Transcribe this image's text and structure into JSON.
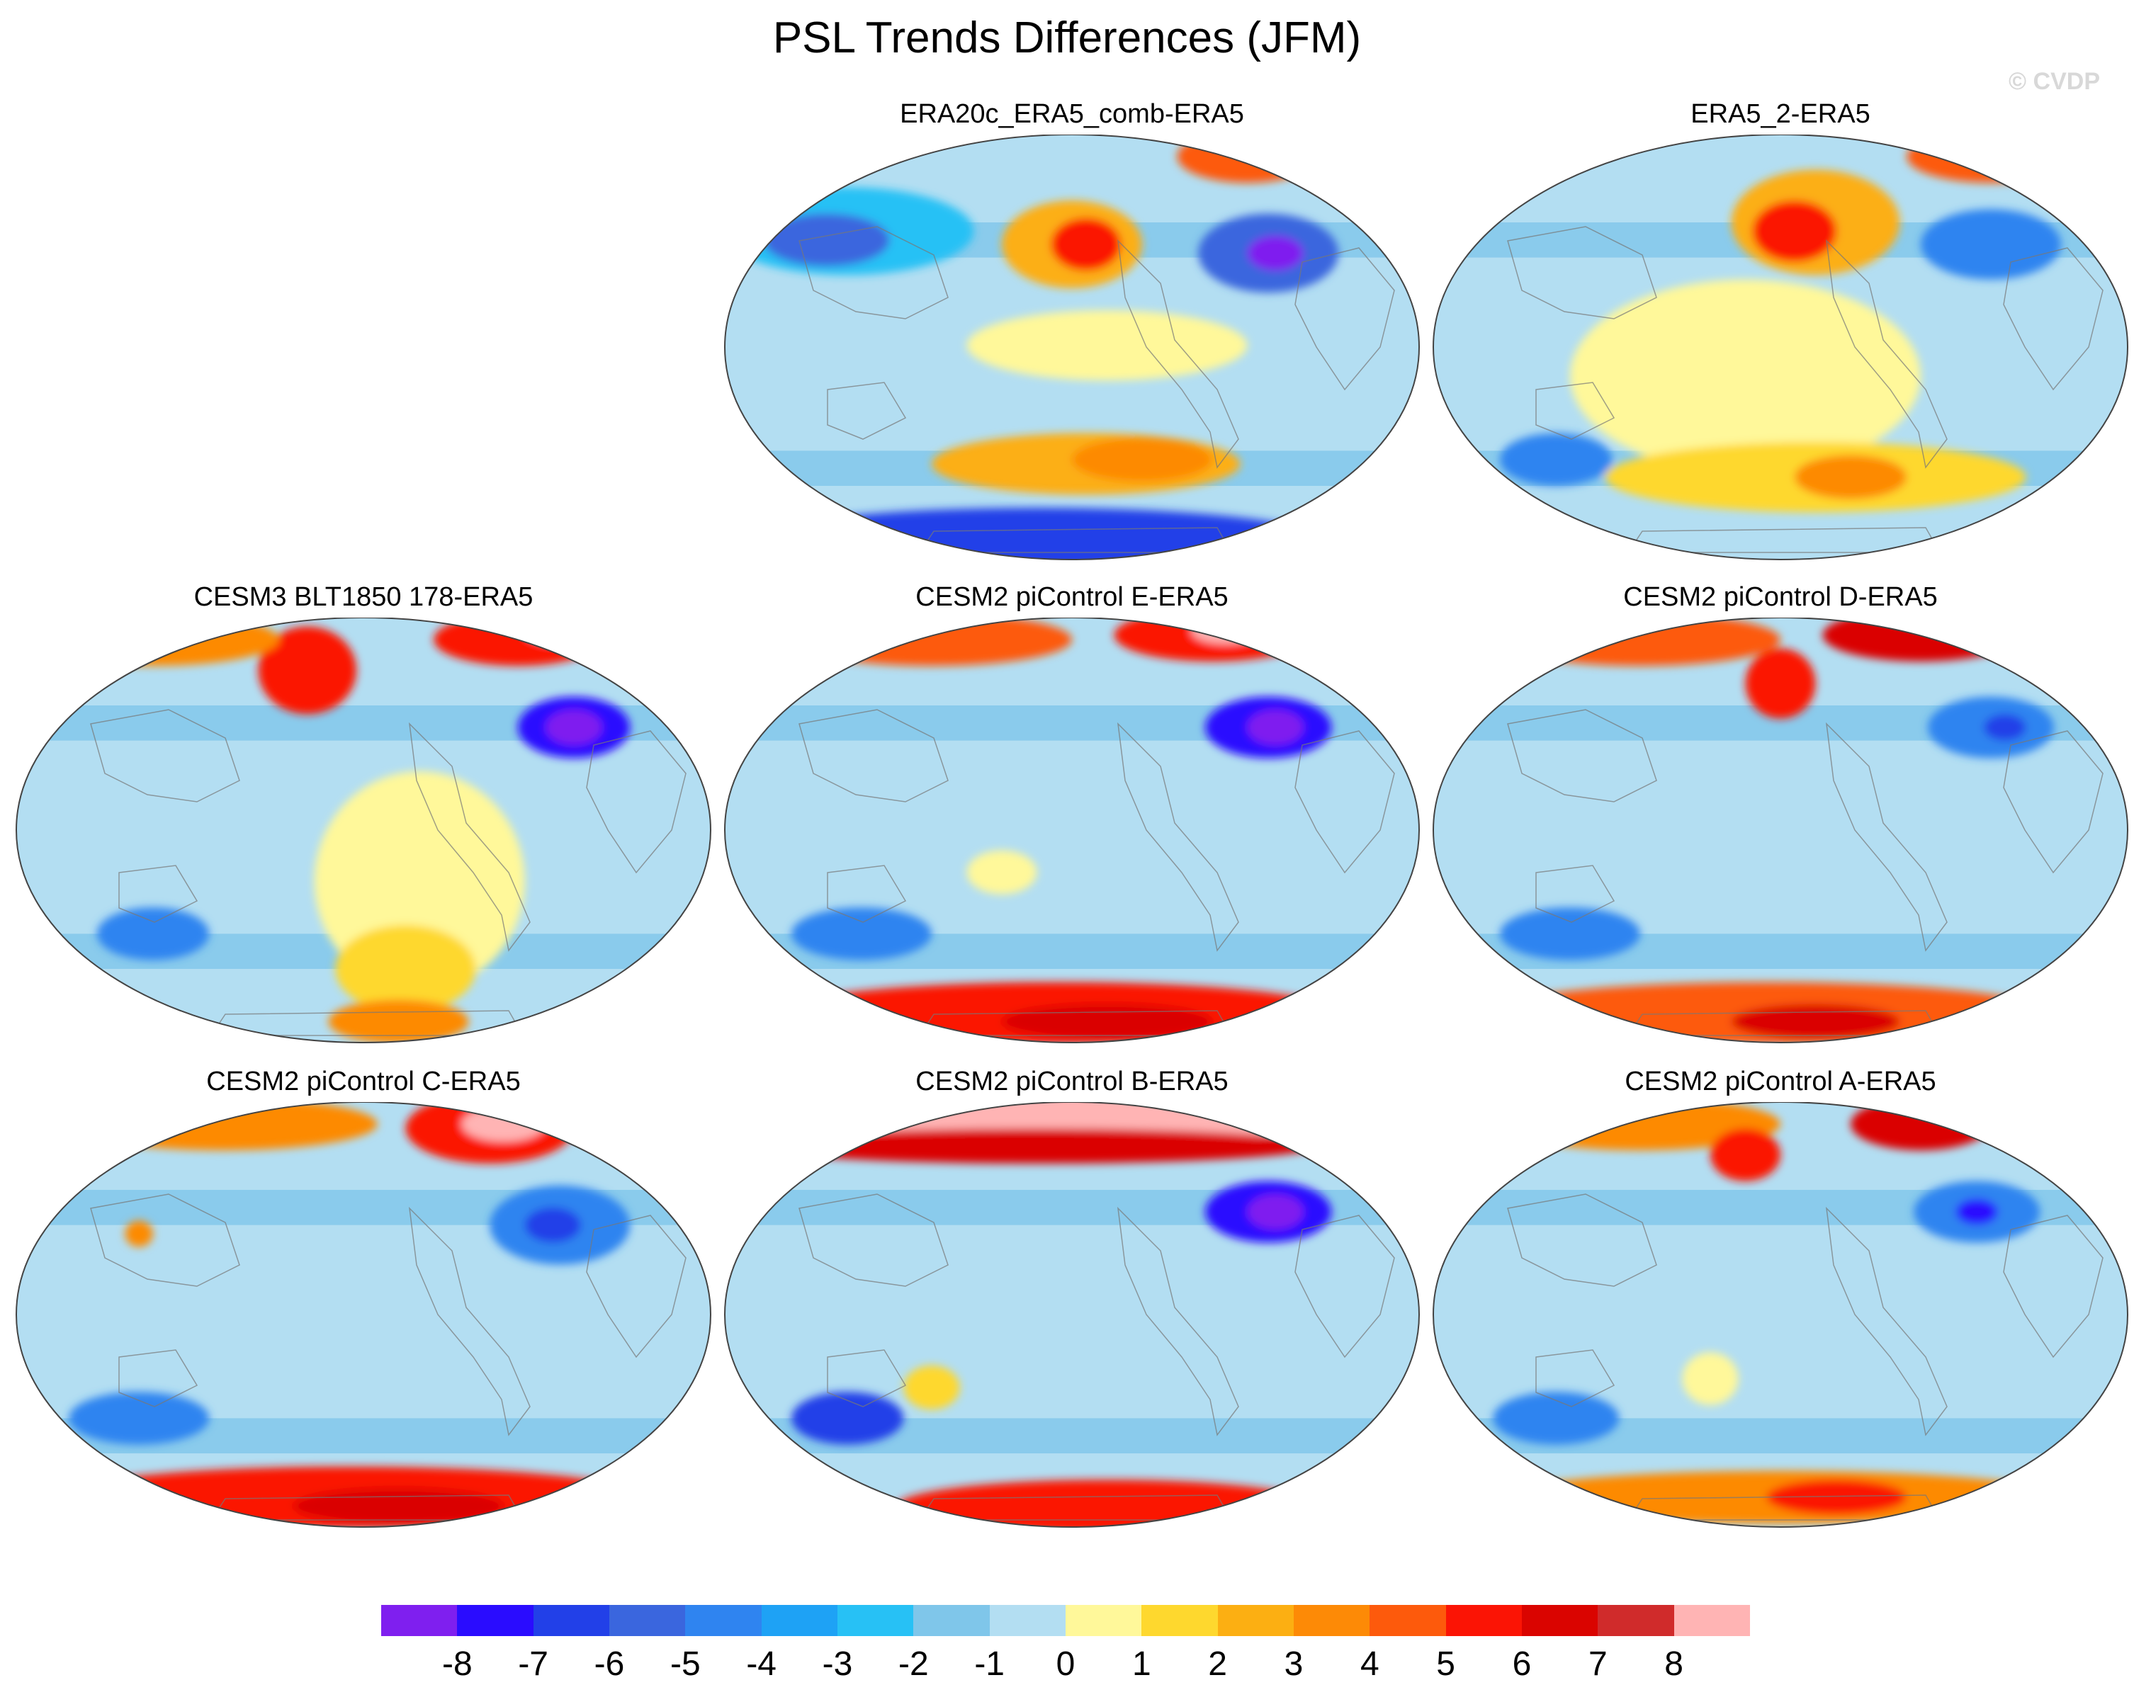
{
  "title": "PSL Trends Differences (JFM)",
  "copyright": "© CVDP",
  "panels": [
    {
      "id": "p1",
      "label": "ERA20c_ERA5_comb-ERA5",
      "row": 0,
      "col": 1
    },
    {
      "id": "p2",
      "label": "ERA5_2-ERA5",
      "row": 0,
      "col": 2
    },
    {
      "id": "p3",
      "label": "CESM3 BLT1850 178-ERA5",
      "row": 1,
      "col": 0
    },
    {
      "id": "p4",
      "label": "CESM2 piControl E-ERA5",
      "row": 1,
      "col": 1
    },
    {
      "id": "p5",
      "label": "CESM2 piControl D-ERA5",
      "row": 1,
      "col": 2
    },
    {
      "id": "p6",
      "label": "CESM2 piControl C-ERA5",
      "row": 2,
      "col": 0
    },
    {
      "id": "p7",
      "label": "CESM2 piControl B-ERA5",
      "row": 2,
      "col": 1
    },
    {
      "id": "p8",
      "label": "CESM2 piControl A-ERA5",
      "row": 2,
      "col": 2
    }
  ],
  "colorbar": {
    "colors": [
      "#7f1fef",
      "#2a0cff",
      "#2240e8",
      "#3a66de",
      "#2f84f0",
      "#1ea2f5",
      "#27c1f5",
      "#7fc6ea",
      "#b3def2",
      "#fff89a",
      "#fed82e",
      "#fcaf12",
      "#fd8a06",
      "#fd5a0c",
      "#fb1405",
      "#da0400",
      "#d02b2b",
      "#ffb4b4"
    ],
    "ticks": [
      "-8",
      "-7",
      "-6",
      "-5",
      "-4",
      "-3",
      "-2",
      "-1",
      "0",
      "1",
      "2",
      "3",
      "4",
      "5",
      "6",
      "7",
      "8"
    ]
  }
}
